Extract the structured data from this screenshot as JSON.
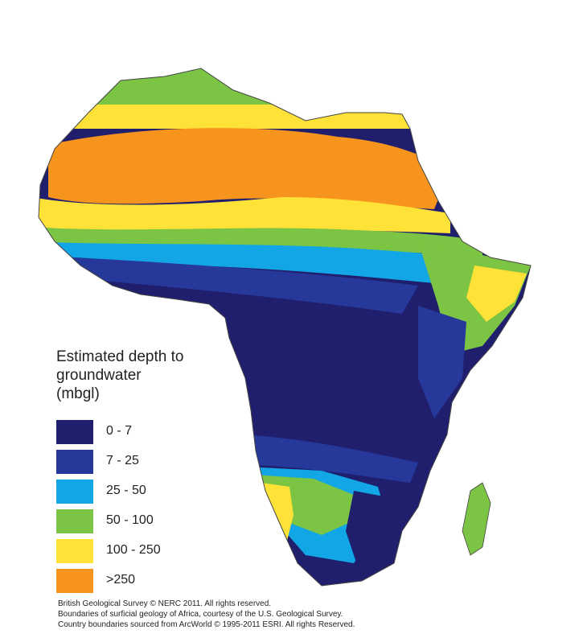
{
  "legend": {
    "title": "Estimated depth to\ngroundwater\n(mbgl)",
    "items": [
      {
        "label": "0 - 7",
        "color": "#1f1f6e"
      },
      {
        "label": "7 - 25",
        "color": "#27389b"
      },
      {
        "label": "25 - 50",
        "color": "#12a6e6"
      },
      {
        "label": "50 - 100",
        "color": "#7cc443"
      },
      {
        "label": "100 - 250",
        "color": "#ffe237"
      },
      {
        "label": ">250",
        "color": "#f7941d"
      }
    ]
  },
  "credits": [
    "British Geological Survey © NERC 2011.  All rights reserved.",
    "Boundaries of surficial geology of Africa, courtesy of the U.S. Geological Survey.",
    "Country boundaries sourced from ArcWorld © 1995-2011 ESRI.  All rights Reserved."
  ]
}
